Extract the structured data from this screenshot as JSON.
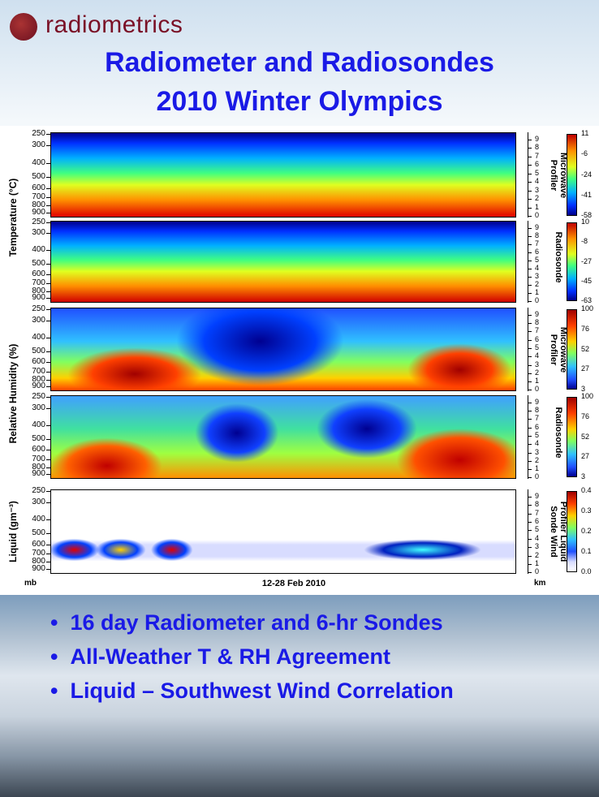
{
  "header": {
    "logo": "radiometrics",
    "title": [
      "Radiometer and Radiosondes",
      "2010 Winter Olympics"
    ]
  },
  "figure": {
    "y_group_labels": [
      "Temperature (°C)",
      "Relative Humidity (%)",
      "Liquid (gm⁻³)"
    ],
    "pressure_ticks": [
      "250",
      "300",
      "400",
      "500",
      "600",
      "700",
      "800",
      "900"
    ],
    "km_ticks": [
      "0",
      "1",
      "2",
      "3",
      "4",
      "5",
      "6",
      "7",
      "8",
      "9"
    ],
    "panels": [
      {
        "label": [
          "Microwave",
          "Profiler"
        ],
        "colorbar_ticks": [
          "11",
          "-6",
          "-24",
          "-41",
          "-58"
        ]
      },
      {
        "label": [
          "Radiosonde"
        ],
        "colorbar_ticks": [
          "10",
          "-8",
          "-27",
          "-45",
          "-63"
        ]
      },
      {
        "label": [
          "Microwave",
          "Profiler"
        ],
        "colorbar_ticks": [
          "100",
          "76",
          "52",
          "27",
          "3"
        ]
      },
      {
        "label": [
          "Radiosonde"
        ],
        "colorbar_ticks": [
          "100",
          "76",
          "52",
          "27",
          "3"
        ]
      },
      {
        "label": [
          "Profiler Liquid",
          "Sonde Wind"
        ],
        "colorbar_ticks": [
          "0.4",
          "0.3",
          "0.2",
          "0.1",
          "0.0"
        ]
      }
    ],
    "pressure_unit": "mb",
    "height_unit": "km",
    "x_label": "12-28 Feb 2010"
  },
  "bullets": [
    "16 day Radiometer and 6-hr Sondes",
    "All-Weather T & RH Agreement",
    "Liquid – Southwest Wind Correlation"
  ]
}
